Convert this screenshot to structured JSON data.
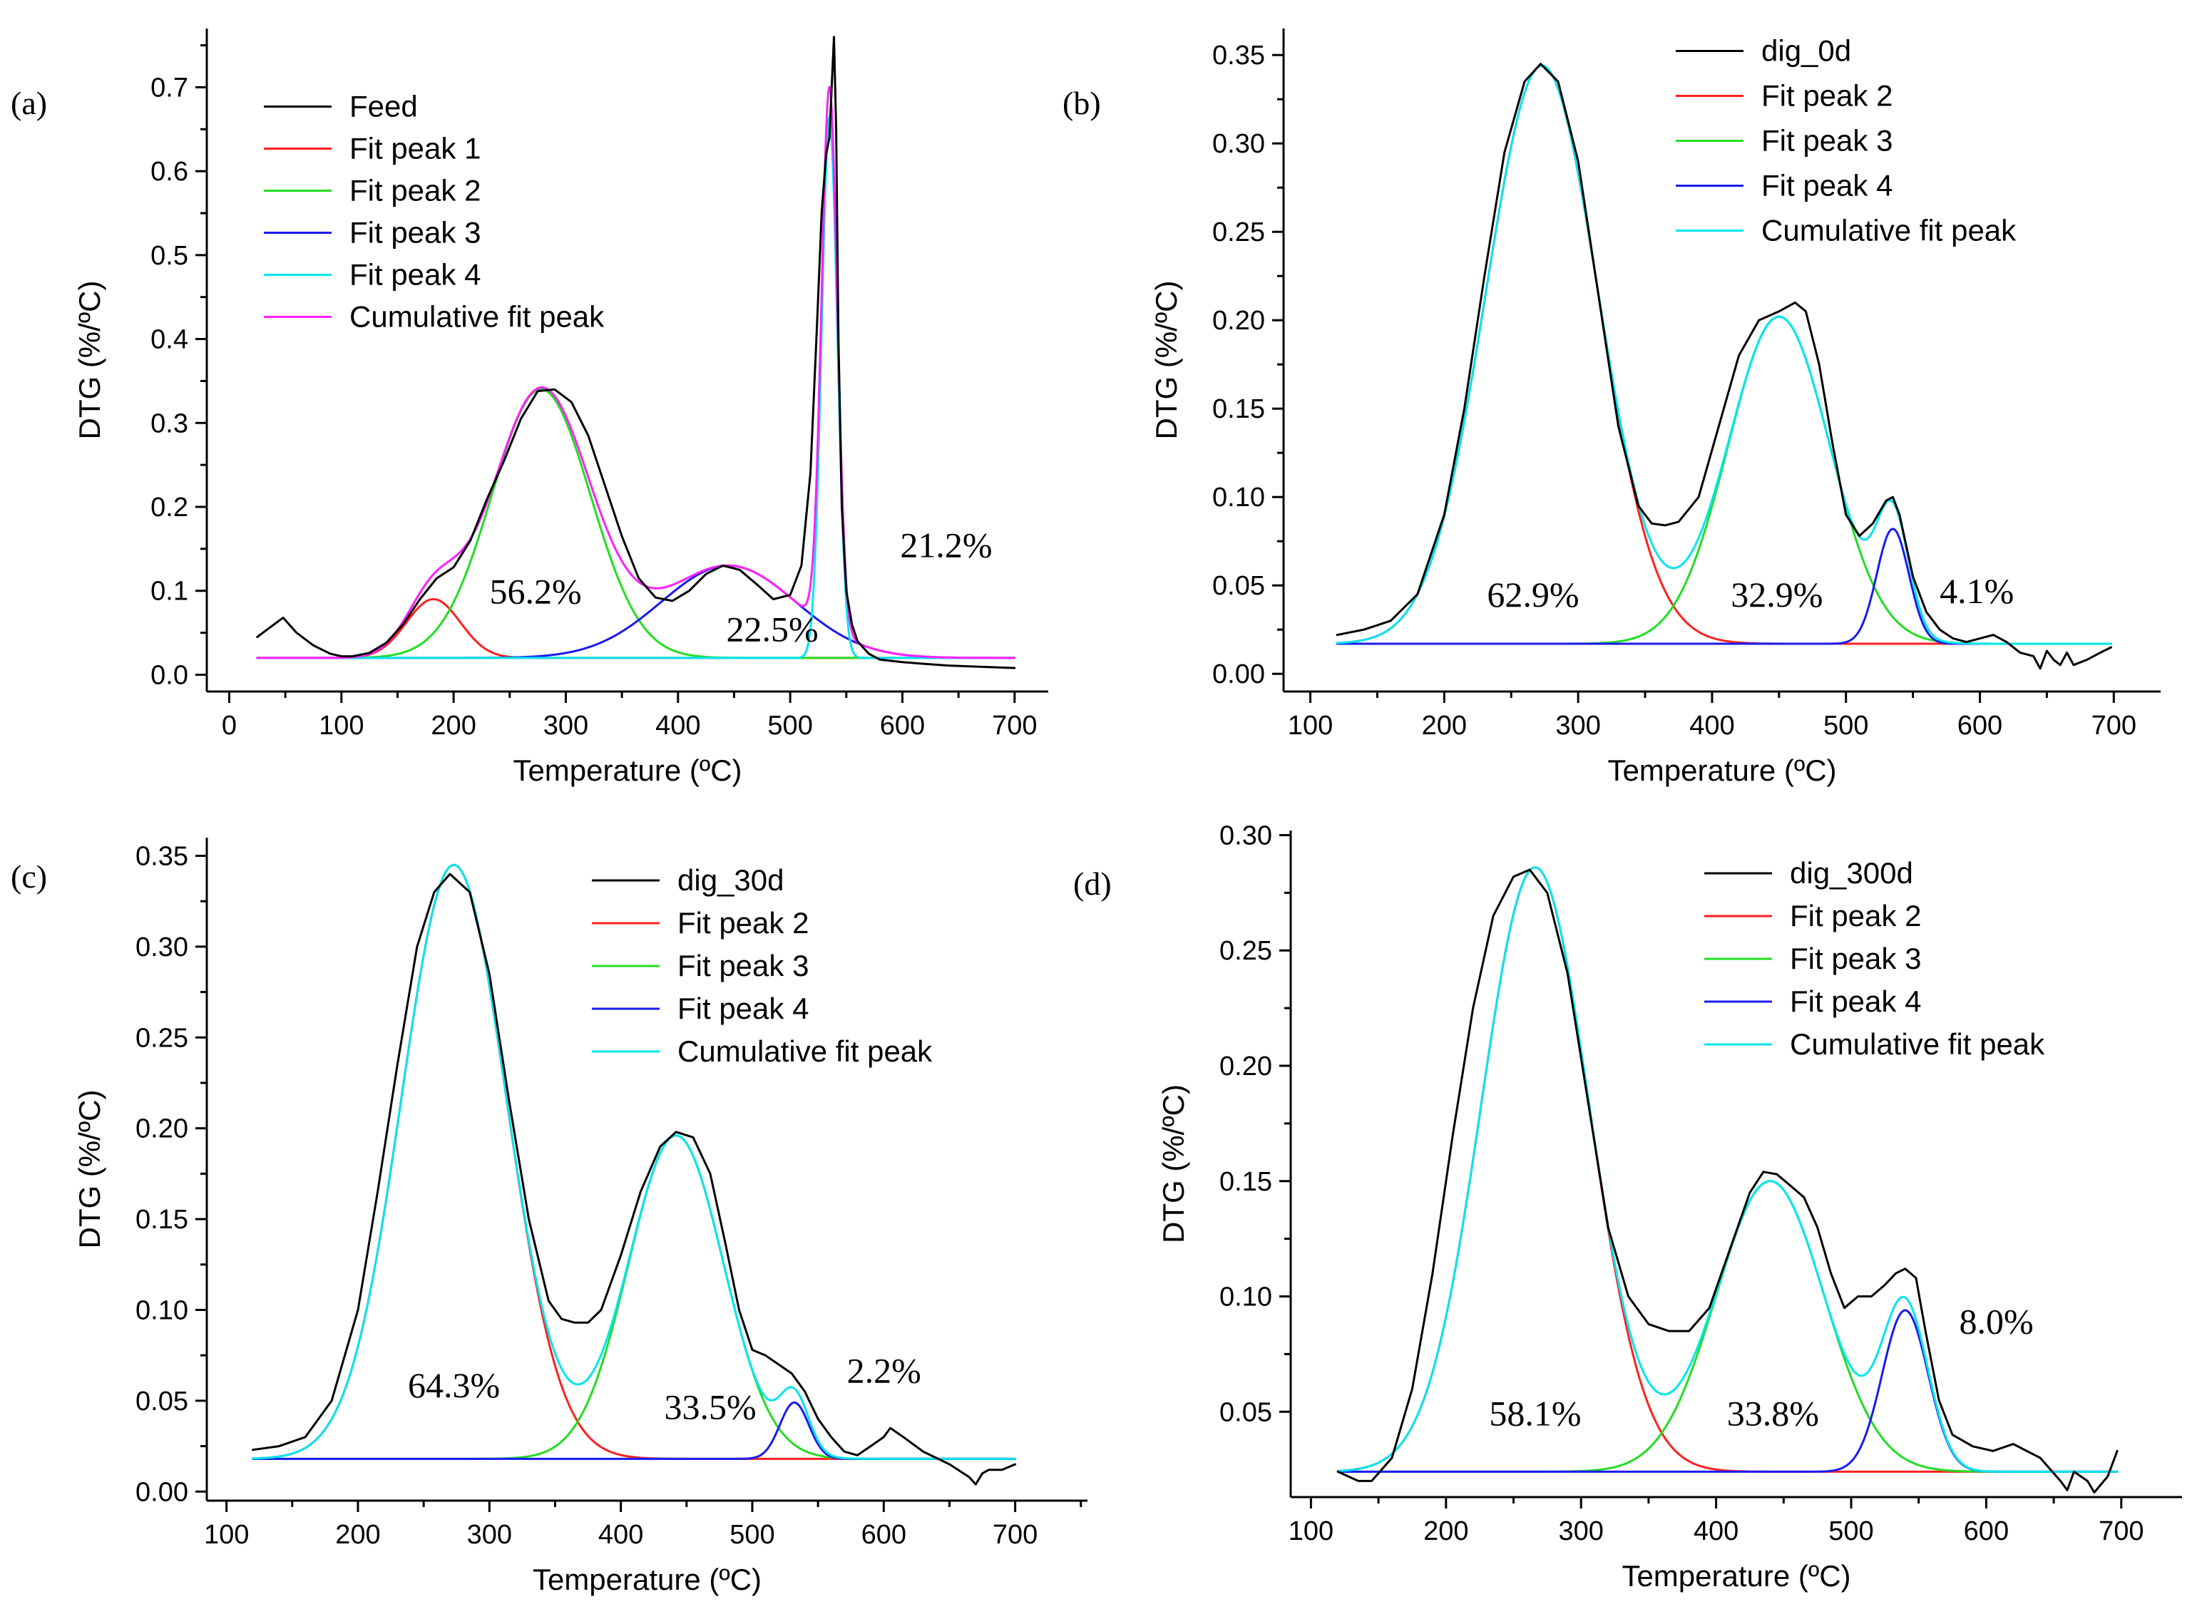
{
  "figure_title": "",
  "colors": {
    "data": "#000000",
    "peak1": "#ff2020",
    "peak2": "#22dd22",
    "peak3": "#1a1aee",
    "peak4": "#00e5ee",
    "cumulative": "#ff20ff"
  },
  "chart_data": [
    {
      "type": "line",
      "panel_label": "(a)",
      "title": "",
      "xlabel": "Temperature (ºC)",
      "ylabel": "DTG (%/ºC)",
      "xlim": [
        -20,
        730
      ],
      "ylim": [
        -0.02,
        0.77
      ],
      "xticks": [
        0,
        100,
        200,
        300,
        400,
        500,
        600,
        700
      ],
      "yticks": [
        0.0,
        0.1,
        0.2,
        0.3,
        0.4,
        0.5,
        0.6,
        0.7
      ],
      "ytick_labels": [
        "0.0",
        "0.1",
        "0.2",
        "0.3",
        "0.4",
        "0.5",
        "0.6",
        "0.7"
      ],
      "baseline": 0.02,
      "legend_position": "top-left",
      "series": [
        {
          "name": "Feed",
          "color": "#000000",
          "x": [
            25,
            35,
            48,
            60,
            75,
            90,
            100,
            110,
            125,
            140,
            155,
            170,
            185,
            200,
            215,
            230,
            245,
            260,
            275,
            290,
            305,
            320,
            335,
            350,
            365,
            380,
            395,
            410,
            425,
            440,
            455,
            470,
            485,
            500,
            510,
            518,
            524,
            528,
            532,
            535,
            537,
            539,
            541,
            543,
            546,
            550,
            555,
            560,
            570,
            580,
            600,
            620,
            640,
            660,
            680,
            700
          ],
          "y": [
            0.045,
            0.055,
            0.068,
            0.05,
            0.035,
            0.025,
            0.022,
            0.022,
            0.026,
            0.038,
            0.06,
            0.09,
            0.115,
            0.128,
            0.16,
            0.21,
            0.255,
            0.305,
            0.338,
            0.34,
            0.325,
            0.285,
            0.225,
            0.165,
            0.115,
            0.092,
            0.088,
            0.1,
            0.12,
            0.13,
            0.125,
            0.108,
            0.09,
            0.095,
            0.13,
            0.24,
            0.42,
            0.55,
            0.62,
            0.64,
            0.7,
            0.76,
            0.65,
            0.4,
            0.2,
            0.1,
            0.06,
            0.04,
            0.025,
            0.018,
            0.015,
            0.013,
            0.011,
            0.01,
            0.009,
            0.008
          ]
        },
        {
          "name": "Fit peak 1",
          "color": "#ff2020",
          "peaks": [
            {
              "a": 0.07,
              "mu": 182,
              "sigma": 24
            }
          ]
        },
        {
          "name": "Fit peak 2",
          "color": "#22dd22",
          "peaks": [
            {
              "a": 0.32,
              "mu": 278,
              "sigma": 44
            }
          ]
        },
        {
          "name": "Fit peak 3",
          "color": "#1a1aee",
          "peaks": [
            {
              "a": 0.11,
              "mu": 445,
              "sigma": 60
            }
          ]
        },
        {
          "name": "Fit peak 4",
          "color": "#00e5ee",
          "peaks": [
            {
              "a": 0.645,
              "mu": 535,
              "sigma": 7
            }
          ]
        },
        {
          "name": "Cumulative fit peak",
          "color": "#ff20ff",
          "peaks": [
            {
              "a": 0.07,
              "mu": 182,
              "sigma": 24
            },
            {
              "a": 0.32,
              "mu": 278,
              "sigma": 44
            },
            {
              "a": 0.11,
              "mu": 445,
              "sigma": 60
            },
            {
              "a": 0.645,
              "mu": 535,
              "sigma": 7
            }
          ]
        }
      ],
      "annotations": [
        {
          "text": "56.2%",
          "x": 232,
          "y": 0.085
        },
        {
          "text": "22.5%",
          "x": 443,
          "y": 0.04
        },
        {
          "text": "21.2%",
          "x": 598,
          "y": 0.14
        }
      ]
    },
    {
      "type": "line",
      "panel_label": "(b)",
      "title": "",
      "xlabel": "Temperature (ºC)",
      "ylabel": "DTG (%/ºC)",
      "xlim": [
        80,
        735
      ],
      "ylim": [
        -0.01,
        0.365
      ],
      "xticks": [
        100,
        200,
        300,
        400,
        500,
        600,
        700
      ],
      "yticks": [
        0.0,
        0.05,
        0.1,
        0.15,
        0.2,
        0.25,
        0.3,
        0.35
      ],
      "ytick_labels": [
        "0.00",
        "0.05",
        "0.10",
        "0.15",
        "0.20",
        "0.25",
        "0.30",
        "0.35"
      ],
      "baseline": 0.017,
      "legend_position": "top-right",
      "series": [
        {
          "name": "dig_0d",
          "color": "#000000",
          "x": [
            120,
            140,
            160,
            180,
            200,
            215,
            230,
            245,
            260,
            272,
            285,
            300,
            315,
            330,
            345,
            355,
            365,
            375,
            390,
            405,
            420,
            435,
            450,
            462,
            470,
            480,
            490,
            500,
            510,
            520,
            530,
            535,
            540,
            550,
            560,
            570,
            580,
            590,
            600,
            610,
            620,
            630,
            640,
            645,
            650,
            655,
            660,
            665,
            670,
            680,
            690,
            698
          ],
          "y": [
            0.022,
            0.025,
            0.03,
            0.045,
            0.09,
            0.15,
            0.225,
            0.295,
            0.335,
            0.345,
            0.335,
            0.29,
            0.215,
            0.14,
            0.095,
            0.085,
            0.084,
            0.086,
            0.1,
            0.14,
            0.18,
            0.2,
            0.205,
            0.21,
            0.205,
            0.175,
            0.13,
            0.09,
            0.078,
            0.085,
            0.098,
            0.1,
            0.09,
            0.055,
            0.035,
            0.025,
            0.02,
            0.018,
            0.02,
            0.022,
            0.018,
            0.012,
            0.01,
            0.003,
            0.013,
            0.008,
            0.005,
            0.012,
            0.005,
            0.008,
            0.012,
            0.015
          ]
        },
        {
          "name": "Fit peak 2",
          "color": "#ff2020",
          "peaks": [
            {
              "a": 0.327,
              "mu": 273,
              "sigma": 42
            }
          ]
        },
        {
          "name": "Fit peak 3",
          "color": "#22dd22",
          "peaks": [
            {
              "a": 0.185,
              "mu": 450,
              "sigma": 38
            }
          ]
        },
        {
          "name": "Fit peak 4",
          "color": "#1a1aee",
          "peaks": [
            {
              "a": 0.065,
              "mu": 535,
              "sigma": 12
            }
          ]
        },
        {
          "name": "Cumulative fit peak",
          "color": "#00e5ee",
          "peaks": [
            {
              "a": 0.327,
              "mu": 273,
              "sigma": 42
            },
            {
              "a": 0.185,
              "mu": 450,
              "sigma": 38
            },
            {
              "a": 0.065,
              "mu": 535,
              "sigma": 12
            }
          ]
        }
      ],
      "annotations": [
        {
          "text": "62.9%",
          "x": 232,
          "y": 0.038
        },
        {
          "text": "32.9%",
          "x": 414,
          "y": 0.038
        },
        {
          "text": "4.1%",
          "x": 570,
          "y": 0.04
        }
      ]
    },
    {
      "type": "line",
      "panel_label": "(c)",
      "title": "",
      "xlabel": "Temperature (ºC)",
      "ylabel": "DTG (%/ºC)",
      "xlim": [
        85,
        755
      ],
      "ylim": [
        -0.005,
        0.36
      ],
      "xticks": [
        100,
        200,
        300,
        400,
        500,
        600,
        700
      ],
      "yticks": [
        0.0,
        0.05,
        0.1,
        0.15,
        0.2,
        0.25,
        0.3,
        0.35
      ],
      "ytick_labels": [
        "0.00",
        "0.05",
        "0.10",
        "0.15",
        "0.20",
        "0.25",
        "0.30",
        "0.35"
      ],
      "baseline": 0.018,
      "legend_position": "top-right",
      "series": [
        {
          "name": "dig_30d",
          "color": "#000000",
          "x": [
            120,
            140,
            160,
            180,
            200,
            215,
            230,
            245,
            258,
            270,
            285,
            300,
            315,
            330,
            345,
            355,
            365,
            375,
            385,
            400,
            415,
            430,
            442,
            455,
            468,
            480,
            490,
            500,
            510,
            520,
            530,
            540,
            550,
            560,
            570,
            580,
            590,
            600,
            605,
            615,
            630,
            650,
            665,
            670,
            675,
            680,
            690,
            700
          ],
          "y": [
            0.023,
            0.025,
            0.03,
            0.05,
            0.1,
            0.165,
            0.235,
            0.3,
            0.33,
            0.34,
            0.33,
            0.285,
            0.215,
            0.15,
            0.105,
            0.095,
            0.093,
            0.093,
            0.1,
            0.13,
            0.165,
            0.19,
            0.198,
            0.195,
            0.175,
            0.135,
            0.1,
            0.078,
            0.075,
            0.07,
            0.065,
            0.055,
            0.04,
            0.03,
            0.022,
            0.02,
            0.025,
            0.03,
            0.035,
            0.03,
            0.022,
            0.015,
            0.008,
            0.004,
            0.01,
            0.012,
            0.012,
            0.015
          ]
        },
        {
          "name": "Fit peak 2",
          "color": "#ff2020",
          "peaks": [
            {
              "a": 0.327,
              "mu": 273,
              "sigma": 40
            }
          ]
        },
        {
          "name": "Fit peak 3",
          "color": "#22dd22",
          "peaks": [
            {
              "a": 0.178,
              "mu": 442,
              "sigma": 36
            }
          ]
        },
        {
          "name": "Fit peak 4",
          "color": "#1a1aee",
          "peaks": [
            {
              "a": 0.031,
              "mu": 532,
              "sigma": 11
            }
          ]
        },
        {
          "name": "Cumulative fit peak",
          "color": "#00e5ee",
          "peaks": [
            {
              "a": 0.327,
              "mu": 273,
              "sigma": 40
            },
            {
              "a": 0.178,
              "mu": 442,
              "sigma": 36
            },
            {
              "a": 0.031,
              "mu": 532,
              "sigma": 11
            }
          ]
        }
      ],
      "annotations": [
        {
          "text": "64.3%",
          "x": 238,
          "y": 0.052
        },
        {
          "text": "33.5%",
          "x": 433,
          "y": 0.04
        },
        {
          "text": "2.2%",
          "x": 572,
          "y": 0.06
        }
      ]
    },
    {
      "type": "line",
      "panel_label": "(d)",
      "title": "",
      "xlabel": "Temperature (ºC)",
      "ylabel": "DTG (%/ºC)",
      "xlim": [
        85,
        745
      ],
      "ylim": [
        0.013,
        0.302
      ],
      "xticks": [
        100,
        200,
        300,
        400,
        500,
        600,
        700
      ],
      "yticks": [
        0.05,
        0.1,
        0.15,
        0.2,
        0.25,
        0.3
      ],
      "ytick_labels": [
        "0.05",
        "0.10",
        "0.15",
        "0.20",
        "0.25",
        "0.30"
      ],
      "baseline": 0.024,
      "legend_position": "top-right",
      "series": [
        {
          "name": "dig_300d",
          "color": "#000000",
          "x": [
            120,
            135,
            145,
            160,
            175,
            190,
            205,
            220,
            235,
            250,
            262,
            275,
            290,
            305,
            320,
            335,
            350,
            365,
            380,
            395,
            410,
            425,
            435,
            445,
            455,
            465,
            475,
            485,
            495,
            505,
            515,
            525,
            533,
            540,
            548,
            555,
            565,
            575,
            590,
            605,
            620,
            640,
            655,
            660,
            665,
            675,
            680,
            690,
            697
          ],
          "y": [
            0.024,
            0.02,
            0.02,
            0.03,
            0.06,
            0.11,
            0.17,
            0.225,
            0.265,
            0.282,
            0.285,
            0.275,
            0.24,
            0.185,
            0.13,
            0.1,
            0.088,
            0.085,
            0.085,
            0.095,
            0.12,
            0.145,
            0.154,
            0.153,
            0.148,
            0.143,
            0.13,
            0.11,
            0.095,
            0.1,
            0.1,
            0.105,
            0.11,
            0.112,
            0.108,
            0.085,
            0.055,
            0.04,
            0.035,
            0.033,
            0.036,
            0.03,
            0.02,
            0.016,
            0.024,
            0.02,
            0.015,
            0.022,
            0.033
          ]
        },
        {
          "name": "Fit peak 2",
          "color": "#ff2020",
          "peaks": [
            {
              "a": 0.262,
              "mu": 266,
              "sigma": 40
            }
          ]
        },
        {
          "name": "Fit peak 3",
          "color": "#22dd22",
          "peaks": [
            {
              "a": 0.126,
              "mu": 440,
              "sigma": 40
            }
          ]
        },
        {
          "name": "Fit peak 4",
          "color": "#1a1aee",
          "peaks": [
            {
              "a": 0.07,
              "mu": 540,
              "sigma": 17
            }
          ]
        },
        {
          "name": "Cumulative fit peak",
          "color": "#00e5ee",
          "peaks": [
            {
              "a": 0.262,
              "mu": 266,
              "sigma": 40
            },
            {
              "a": 0.126,
              "mu": 440,
              "sigma": 40
            },
            {
              "a": 0.07,
              "mu": 540,
              "sigma": 17
            }
          ]
        }
      ],
      "annotations": [
        {
          "text": "58.1%",
          "x": 232,
          "y": 0.044
        },
        {
          "text": "33.8%",
          "x": 408,
          "y": 0.044
        },
        {
          "text": "8.0%",
          "x": 580,
          "y": 0.084
        }
      ]
    }
  ]
}
